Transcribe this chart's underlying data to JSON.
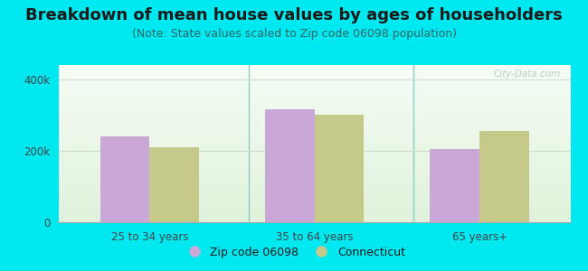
{
  "title": "Breakdown of mean house values by ages of householders",
  "subtitle": "(Note: State values scaled to Zip code 06098 population)",
  "categories": [
    "25 to 34 years",
    "35 to 64 years",
    "65 years+"
  ],
  "zip_values": [
    240000,
    315000,
    205000
  ],
  "state_values": [
    210000,
    300000,
    255000
  ],
  "zip_color": "#c9a8d8",
  "state_color": "#c5c98a",
  "background_outer": "#00e8f0",
  "background_inner_top": "#f5fff5",
  "background_inner_bottom": "#d8f0d0",
  "yticks": [
    0,
    200000,
    400000
  ],
  "ytick_labels": [
    "0",
    "200k",
    "400k"
  ],
  "ylim": [
    0,
    440000
  ],
  "legend_zip_label": "Zip code 06098",
  "legend_state_label": "Connecticut",
  "watermark": "City-Data.com",
  "title_fontsize": 13,
  "subtitle_fontsize": 9,
  "bar_width": 0.3,
  "separator_color": "#88cccc",
  "grid_color": "#ccddcc"
}
